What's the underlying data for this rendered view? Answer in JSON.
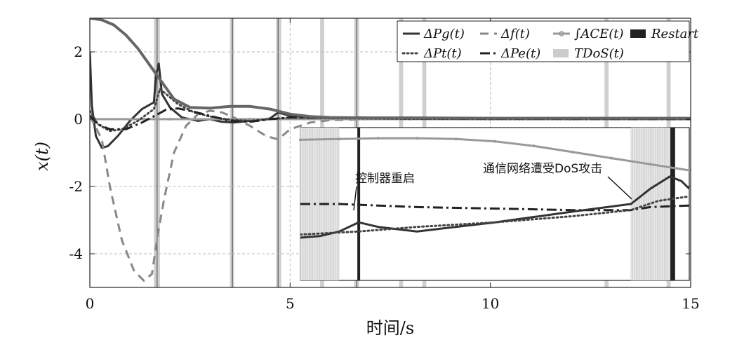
{
  "chart_data": {
    "type": "line",
    "title": "",
    "xlabel": "时间/s",
    "ylabel": "x(t)",
    "xlim": [
      0,
      15
    ],
    "ylim": [
      -5,
      3
    ],
    "xticks": [
      0,
      5,
      10,
      15
    ],
    "xtick_labels": [
      "0",
      "5",
      "10",
      "15"
    ],
    "yticks": [
      -4,
      -2,
      0,
      2
    ],
    "ytick_labels": [
      "-4",
      "-2",
      "0",
      "2"
    ],
    "grid": true,
    "legend_position": "top-right",
    "legend_rows": [
      [
        "ΔPg(t)",
        "Δf(t)",
        "∫ACE(t)",
        "Restart"
      ],
      [
        "ΔPt(t)",
        "ΔPe(t)",
        "TDoS(t)"
      ]
    ],
    "series": [
      {
        "name": "ΔPg(t)",
        "style": "solid",
        "color": "#333333",
        "x": [
          0,
          0.05,
          0.15,
          0.3,
          0.45,
          0.7,
          1.0,
          1.3,
          1.6,
          1.65,
          1.72,
          1.8,
          2.0,
          2.3,
          2.7,
          3.0,
          3.3,
          3.6,
          4.0,
          4.5,
          4.7,
          5.0,
          6.0,
          8.0,
          10.0,
          12.0,
          15.0
        ],
        "y": [
          2.0,
          0.4,
          -0.5,
          -0.85,
          -0.8,
          -0.5,
          -0.05,
          0.3,
          0.5,
          1.3,
          1.65,
          0.75,
          0.35,
          0.05,
          -0.05,
          0.0,
          -0.08,
          -0.1,
          -0.05,
          0.02,
          0.2,
          0.1,
          0.05,
          0.02,
          0.01,
          0.0,
          0.0
        ]
      },
      {
        "name": "Δf(t)",
        "style": "dashed",
        "color": "#888888",
        "x": [
          0,
          0.3,
          0.5,
          0.8,
          1.1,
          1.35,
          1.55,
          1.7,
          1.85,
          2.1,
          2.4,
          2.7,
          3.0,
          3.3,
          3.6,
          4.0,
          4.4,
          4.7,
          5.0,
          5.5,
          6.0,
          7.0,
          8.0,
          10.0,
          15.0
        ],
        "y": [
          0.1,
          -0.6,
          -2.0,
          -3.6,
          -4.5,
          -4.8,
          -4.6,
          -3.4,
          -2.4,
          -1.0,
          -0.2,
          0.15,
          0.25,
          0.2,
          0.05,
          -0.2,
          -0.5,
          -0.6,
          -0.3,
          -0.1,
          -0.03,
          0.0,
          0.0,
          0.0,
          0.0
        ]
      },
      {
        "name": "∫ACE(t)",
        "style": "marker-line",
        "color": "#999999",
        "x": [
          0,
          2,
          4,
          6,
          8,
          10,
          12,
          15
        ],
        "y": [
          0.0,
          0.0,
          0.0,
          0.0,
          0.0,
          0.0,
          0.0,
          0.0
        ]
      },
      {
        "name": "ΔPt(t)",
        "style": "dotted",
        "color": "#444444",
        "x": [
          0,
          0.2,
          0.5,
          0.8,
          1.2,
          1.6,
          1.75,
          1.9,
          2.2,
          2.6,
          3.0,
          3.5,
          4.0,
          4.5,
          5.0,
          6.0,
          8.0,
          10.0,
          15.0
        ],
        "y": [
          0.25,
          -0.15,
          -0.35,
          -0.3,
          -0.05,
          0.3,
          0.9,
          0.75,
          0.45,
          0.2,
          0.08,
          -0.02,
          -0.05,
          0.0,
          0.05,
          0.03,
          0.01,
          0.0,
          0.0
        ]
      },
      {
        "name": "ΔPe(t)",
        "style": "dash-dot",
        "color": "#222222",
        "x": [
          0,
          0.2,
          0.5,
          0.9,
          1.3,
          1.7,
          1.9,
          2.2,
          2.6,
          3.0,
          3.5,
          4.0,
          4.5,
          5.0,
          6.0,
          8.0,
          10.0,
          15.0
        ],
        "y": [
          0.1,
          -0.15,
          -0.3,
          -0.3,
          -0.1,
          0.15,
          0.28,
          0.32,
          0.22,
          0.1,
          -0.05,
          -0.08,
          0.0,
          0.05,
          0.04,
          0.02,
          0.01,
          0.0
        ]
      },
      {
        "name": "upper-curve",
        "style": "solid-thick",
        "color": "#666666",
        "x": [
          0,
          0.3,
          0.6,
          0.9,
          1.2,
          1.5,
          1.8,
          2.1,
          2.5,
          3.0,
          3.5,
          4.0,
          4.5,
          5.0,
          5.5,
          6.0,
          7.0,
          8.0,
          10.0,
          12.0,
          15.0
        ],
        "y": [
          3.0,
          2.95,
          2.8,
          2.5,
          2.1,
          1.6,
          1.1,
          0.6,
          0.35,
          0.33,
          0.38,
          0.38,
          0.3,
          0.15,
          0.08,
          0.05,
          0.04,
          0.04,
          0.03,
          0.03,
          0.03
        ]
      }
    ],
    "dos_intervals": [
      [
        1.6,
        1.75
      ],
      [
        3.5,
        3.6
      ],
      [
        4.65,
        4.78
      ],
      [
        5.75,
        5.85
      ],
      [
        6.6,
        6.72
      ],
      [
        7.72,
        7.82
      ],
      [
        8.3,
        8.4
      ],
      [
        12.85,
        12.95
      ],
      [
        14.4,
        14.5
      ]
    ],
    "restart_times": [
      1.68,
      3.56,
      4.7,
      6.66
    ],
    "inset": {
      "annotations": [
        "控制器重启",
        "通信网络遭受DoS攻击"
      ],
      "dos_regions": [
        [
          0.0,
          0.1
        ],
        [
          0.85,
          0.96
        ]
      ],
      "restart_lines": [
        0.15,
        0.955,
        0.96
      ],
      "series": [
        {
          "name": "∫ACE(t)",
          "style": "marker-line",
          "color": "#999999",
          "x": [
            0,
            0.1,
            0.2,
            0.3,
            0.4,
            0.5,
            0.6,
            0.7,
            0.8,
            0.9,
            1.0
          ],
          "y": [
            0.92,
            0.925,
            0.93,
            0.93,
            0.925,
            0.91,
            0.88,
            0.84,
            0.8,
            0.76,
            0.72
          ]
        },
        {
          "name": "ΔPe(t)",
          "style": "dash-dot",
          "color": "#222222",
          "x": [
            0,
            0.1,
            0.2,
            0.3,
            0.5,
            0.7,
            0.85,
            0.9,
            1.0
          ],
          "y": [
            0.5,
            0.5,
            0.49,
            0.48,
            0.47,
            0.46,
            0.46,
            0.48,
            0.49
          ]
        },
        {
          "name": "ΔPg(t)",
          "style": "solid",
          "color": "#333333",
          "x": [
            0,
            0.05,
            0.1,
            0.15,
            0.2,
            0.3,
            0.5,
            0.7,
            0.85,
            0.9,
            0.95,
            0.98,
            1.0
          ],
          "y": [
            0.28,
            0.29,
            0.32,
            0.38,
            0.35,
            0.32,
            0.38,
            0.45,
            0.5,
            0.6,
            0.68,
            0.65,
            0.6
          ]
        },
        {
          "name": "ΔPt(t)",
          "style": "dotted",
          "color": "#444444",
          "x": [
            0,
            0.15,
            0.3,
            0.5,
            0.7,
            0.85,
            0.92,
            1.0
          ],
          "y": [
            0.3,
            0.32,
            0.35,
            0.38,
            0.42,
            0.46,
            0.52,
            0.55
          ]
        }
      ]
    }
  }
}
